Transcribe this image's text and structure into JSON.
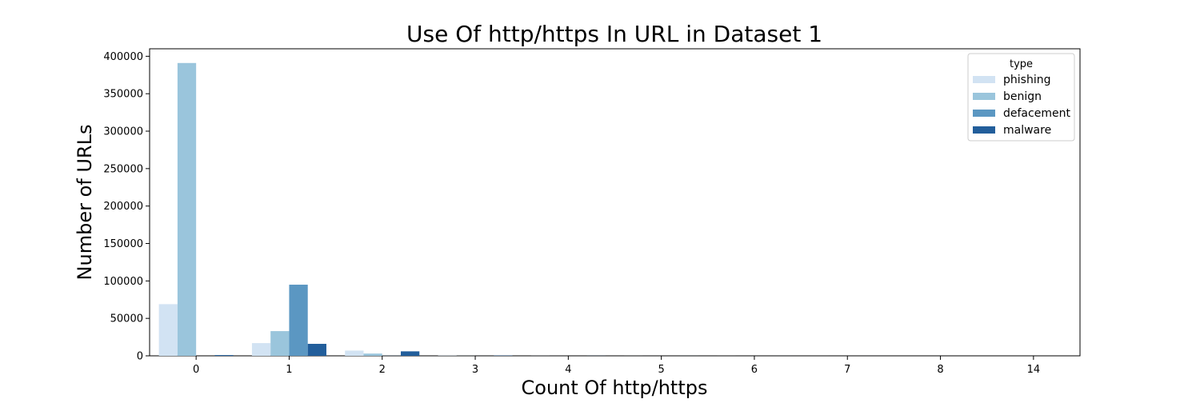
{
  "chart_data": {
    "type": "bar",
    "title": "Use Of http/https In URL in Dataset 1",
    "xlabel": "Count Of http/https",
    "ylabel": "Number of URLs",
    "categories": [
      "0",
      "1",
      "2",
      "3",
      "4",
      "5",
      "6",
      "7",
      "8",
      "14"
    ],
    "ylim": [
      0,
      410000
    ],
    "yticks": [
      0,
      50000,
      100000,
      150000,
      200000,
      250000,
      300000,
      350000,
      400000
    ],
    "grid": false,
    "legend": {
      "title": "type",
      "position": "top-right"
    },
    "series": [
      {
        "name": "phishing",
        "color": "#d2e3f3",
        "values": [
          69000,
          17000,
          7000,
          300,
          80,
          40,
          20,
          10,
          5,
          2
        ]
      },
      {
        "name": "benign",
        "color": "#9ac5dc",
        "values": [
          391000,
          33000,
          3000,
          100,
          30,
          10,
          5,
          3,
          2,
          1
        ]
      },
      {
        "name": "defacement",
        "color": "#5b97c2",
        "values": [
          0,
          95000,
          150,
          20,
          5,
          2,
          1,
          0,
          0,
          0
        ]
      },
      {
        "name": "malware",
        "color": "#225e9b",
        "values": [
          1000,
          16000,
          6000,
          400,
          100,
          50,
          20,
          10,
          5,
          1
        ]
      }
    ]
  }
}
